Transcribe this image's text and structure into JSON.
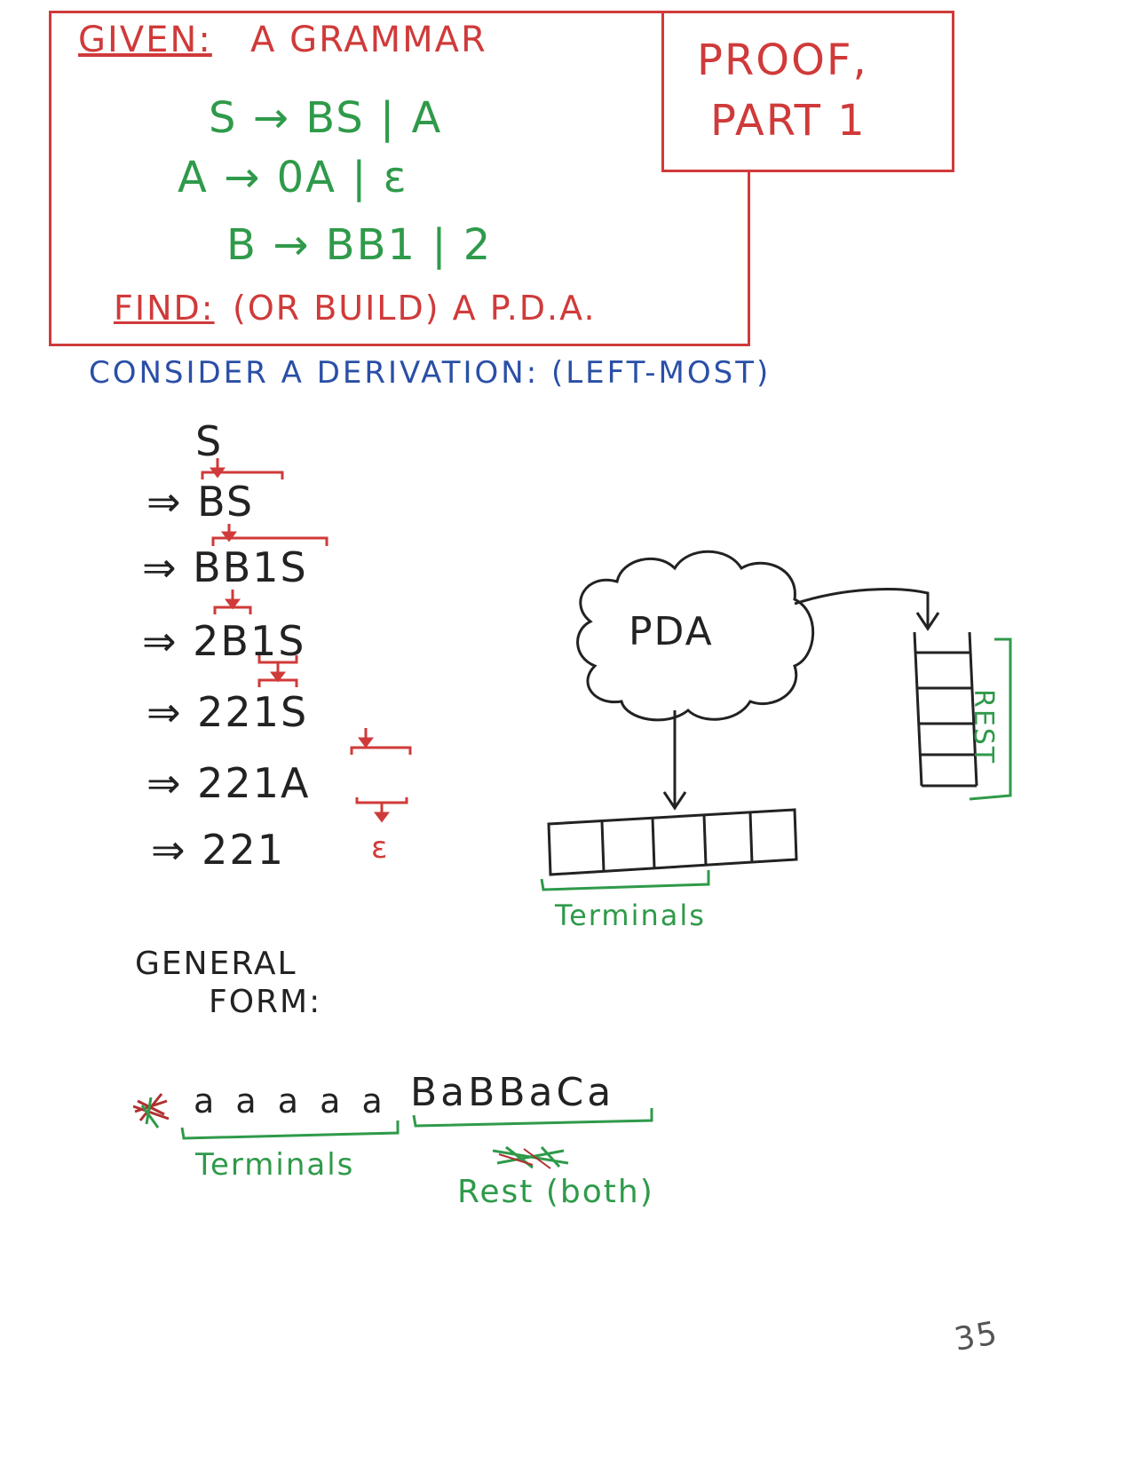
{
  "given_box": {
    "given_label": "GIVEN:",
    "given_text": "A GRAMMAR",
    "rules": [
      "S → BS | A",
      "A → 0A | ε",
      "B → BB1 | 2"
    ],
    "find_label": "FIND:",
    "find_text": "(OR BUILD) A P.D.A."
  },
  "proof_box": {
    "line1": "PROOF,",
    "line2": "PART 1"
  },
  "derivation": {
    "heading": "CONSIDER A DERIVATION: (LEFT-MOST)",
    "start": "S",
    "steps": [
      "⇒ BS",
      "⇒ BB1S",
      "⇒ 2B1S",
      "⇒ 221S",
      "⇒ 221A",
      "⇒ 221"
    ],
    "epsilon": "ε"
  },
  "pda_diagram": {
    "cloud_label": "PDA",
    "rest_label": "REST",
    "terminals_label": "Terminals"
  },
  "general_form": {
    "line1": "GENERAL",
    "line2": "FORM:",
    "terminals_string": "a a a a a",
    "rest_string": "BaBBaCa",
    "terminals_label": "Terminals",
    "rest_label": "Rest (both)"
  },
  "page_number": "35",
  "colors": {
    "red": "#d03a3a",
    "green": "#2f9a4a",
    "blue": "#2a4fa6",
    "black": "#222222"
  }
}
